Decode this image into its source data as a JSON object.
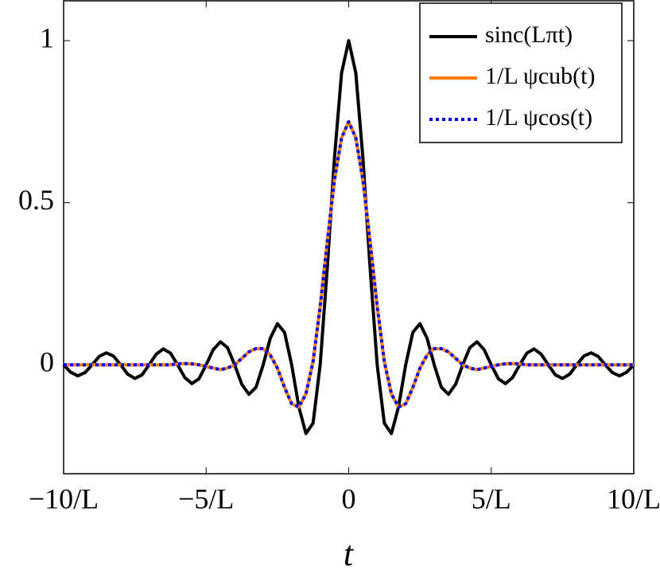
{
  "chart_data": {
    "type": "line",
    "x": [
      -10,
      -9.75,
      -9.5,
      -9.25,
      -9,
      -8.75,
      -8.5,
      -8.25,
      -8,
      -7.75,
      -7.5,
      -7.25,
      -7,
      -6.75,
      -6.5,
      -6.25,
      -6,
      -5.75,
      -5.5,
      -5.25,
      -5,
      -4.75,
      -4.5,
      -4.25,
      -4,
      -3.75,
      -3.5,
      -3.25,
      -3,
      -2.75,
      -2.5,
      -2.25,
      -2,
      -1.75,
      -1.5,
      -1.25,
      -1,
      -0.75,
      -0.5,
      -0.25,
      0,
      0.25,
      0.5,
      0.75,
      1,
      1.25,
      1.5,
      1.75,
      2,
      2.25,
      2.5,
      2.75,
      3,
      3.25,
      3.5,
      3.75,
      4,
      4.25,
      4.5,
      4.75,
      5,
      5.25,
      5.5,
      5.75,
      6,
      6.25,
      6.5,
      6.75,
      7,
      7.25,
      7.5,
      7.75,
      8,
      8.25,
      8.5,
      8.75,
      9,
      9.25,
      9.5,
      9.75,
      10
    ],
    "series": [
      {
        "name": "sinc(Lπt)",
        "color": "#000000",
        "dash": "solid",
        "values": [
          0,
          -0.023,
          -0.034,
          -0.024,
          0,
          0.026,
          0.037,
          0.027,
          0,
          -0.029,
          -0.042,
          -0.031,
          0,
          0.033,
          0.049,
          0.036,
          0,
          -0.039,
          -0.058,
          -0.043,
          0,
          0.047,
          0.071,
          0.053,
          0,
          -0.06,
          -0.091,
          -0.069,
          0,
          0.082,
          0.127,
          0.1,
          0,
          -0.129,
          -0.212,
          -0.18,
          0,
          0.3,
          0.637,
          0.9,
          1,
          0.9,
          0.637,
          0.3,
          0,
          -0.18,
          -0.212,
          -0.129,
          0,
          0.1,
          0.127,
          0.082,
          0,
          -0.069,
          -0.091,
          -0.06,
          0,
          0.053,
          0.071,
          0.047,
          0,
          -0.043,
          -0.058,
          -0.039,
          0,
          0.036,
          0.049,
          0.033,
          0,
          -0.031,
          -0.042,
          -0.029,
          0,
          0.027,
          0.037,
          0.026,
          0,
          -0.024,
          -0.034,
          -0.023,
          0
        ]
      },
      {
        "name": "1/L ψcub(t)",
        "color": "#ff7f0e",
        "dash": "solid",
        "values": [
          0,
          0,
          0,
          0,
          0,
          0,
          0,
          0,
          0,
          0,
          0,
          0,
          0,
          0,
          0,
          0,
          0.003,
          0.004,
          0.003,
          0,
          -0.005,
          -0.01,
          -0.015,
          -0.01,
          0,
          0.02,
          0.04,
          0.05,
          0.05,
          0.03,
          -0.01,
          -0.07,
          -0.12,
          -0.13,
          -0.09,
          0.01,
          0.18,
          0.38,
          0.57,
          0.7,
          0.75,
          0.7,
          0.57,
          0.38,
          0.18,
          0.01,
          -0.09,
          -0.13,
          -0.12,
          -0.07,
          -0.01,
          0.03,
          0.05,
          0.05,
          0.04,
          0.02,
          0,
          -0.01,
          -0.015,
          -0.01,
          -0.005,
          0,
          0.003,
          0.004,
          0.003,
          0,
          0,
          0,
          0,
          0,
          0,
          0,
          0,
          0,
          0,
          0,
          0,
          0,
          0,
          0,
          0
        ]
      },
      {
        "name": "1/L ψcos(t)",
        "color": "#0000ff",
        "dash": "dotted",
        "values": [
          0,
          0,
          0,
          0,
          0,
          0,
          0,
          0,
          0,
          0,
          0,
          0,
          0,
          0,
          0,
          0,
          0.003,
          0.004,
          0.003,
          0,
          -0.005,
          -0.01,
          -0.015,
          -0.01,
          0,
          0.02,
          0.04,
          0.05,
          0.05,
          0.03,
          -0.01,
          -0.07,
          -0.12,
          -0.13,
          -0.09,
          0.01,
          0.18,
          0.38,
          0.57,
          0.7,
          0.75,
          0.7,
          0.57,
          0.38,
          0.18,
          0.01,
          -0.09,
          -0.13,
          -0.12,
          -0.07,
          -0.01,
          0.03,
          0.05,
          0.05,
          0.04,
          0.02,
          0,
          -0.01,
          -0.015,
          -0.01,
          -0.005,
          0,
          0.003,
          0.004,
          0.003,
          0,
          0,
          0,
          0,
          0,
          0,
          0,
          0,
          0,
          0,
          0,
          0,
          0,
          0,
          0,
          0
        ]
      }
    ],
    "xlabel": "t",
    "xlim": [
      -10,
      10
    ],
    "xticks": [
      {
        "value": -10,
        "label": "−10/L"
      },
      {
        "value": -5,
        "label": "−5/L"
      },
      0,
      {
        "value": 5,
        "label": "5/L"
      },
      {
        "value": 10,
        "label": "10/L"
      }
    ],
    "ylim": [
      -0.336,
      1.123
    ],
    "yticks": [
      0,
      0.5,
      1
    ],
    "legend": "top-right"
  }
}
